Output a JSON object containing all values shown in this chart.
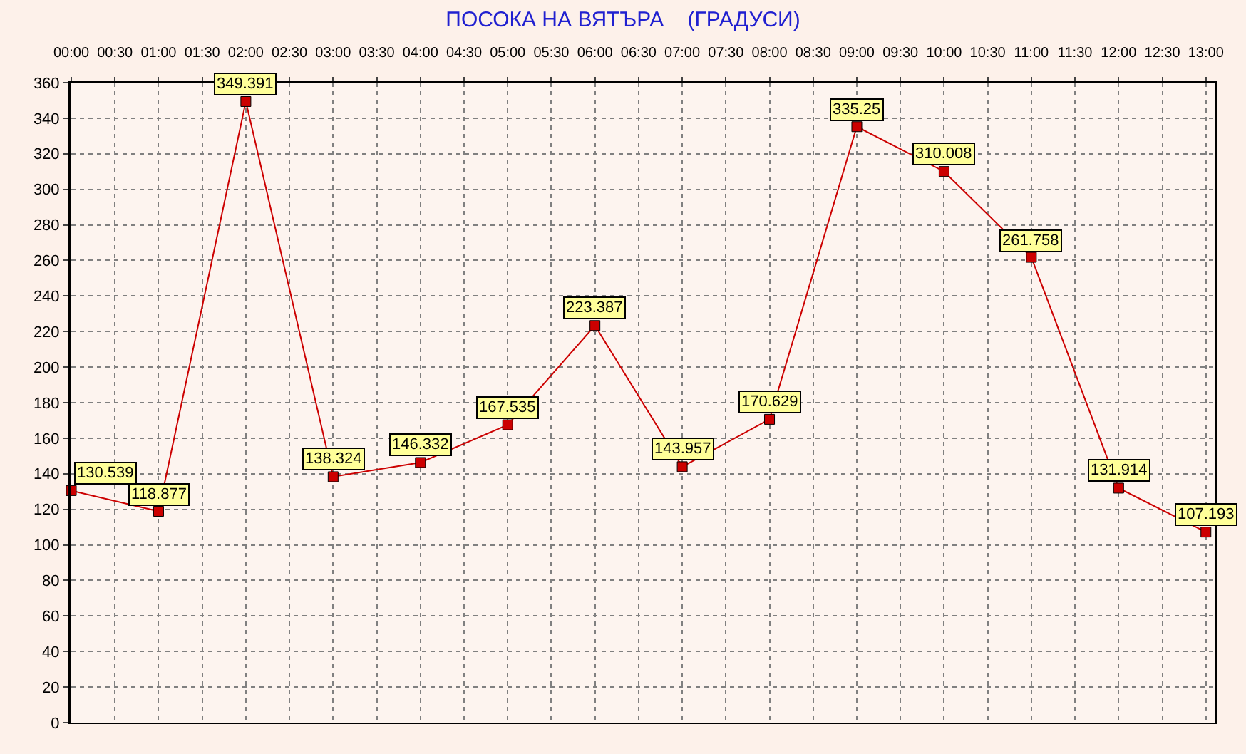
{
  "chart_data": {
    "type": "line",
    "title": "ПОСОКА НА ВЯТЪРА    (ГРАДУСИ)",
    "x": [
      0,
      1,
      2,
      3,
      4,
      5,
      6,
      7,
      8,
      9,
      10,
      11,
      12,
      13
    ],
    "series": [
      {
        "color": "#cc0000",
        "values": [
          130.539,
          118.877,
          349.391,
          138.324,
          146.332,
          167.535,
          223.387,
          143.957,
          170.629,
          335.25,
          310.008,
          261.758,
          131.914,
          107.193
        ]
      }
    ],
    "xlim": [
      0,
      13.1
    ],
    "xticks": [
      {
        "value": 0,
        "label": "00:00"
      },
      {
        "value": 0.5,
        "label": "00:30"
      },
      {
        "value": 1,
        "label": "01:00"
      },
      {
        "value": 1.5,
        "label": "01:30"
      },
      {
        "value": 2,
        "label": "02:00"
      },
      {
        "value": 2.5,
        "label": "02:30"
      },
      {
        "value": 3,
        "label": "03:00"
      },
      {
        "value": 3.5,
        "label": "03:30"
      },
      {
        "value": 4,
        "label": "04:00"
      },
      {
        "value": 4.5,
        "label": "04:30"
      },
      {
        "value": 5,
        "label": "05:00"
      },
      {
        "value": 5.5,
        "label": "05:30"
      },
      {
        "value": 6,
        "label": "06:00"
      },
      {
        "value": 6.5,
        "label": "06:30"
      },
      {
        "value": 7,
        "label": "07:00"
      },
      {
        "value": 7.5,
        "label": "07:30"
      },
      {
        "value": 8,
        "label": "08:00"
      },
      {
        "value": 8.5,
        "label": "08:30"
      },
      {
        "value": 9,
        "label": "09:00"
      },
      {
        "value": 9.5,
        "label": "09:30"
      },
      {
        "value": 10,
        "label": "10:00"
      },
      {
        "value": 10.5,
        "label": "10:30"
      },
      {
        "value": 11,
        "label": "11:00"
      },
      {
        "value": 11.5,
        "label": "11:30"
      },
      {
        "value": 12,
        "label": "12:00"
      },
      {
        "value": 12.5,
        "label": "12:30"
      },
      {
        "value": 13,
        "label": "13:00"
      }
    ],
    "ylim": [
      0,
      360
    ],
    "yticks": [
      0,
      20,
      40,
      60,
      80,
      100,
      120,
      140,
      160,
      180,
      200,
      220,
      240,
      260,
      280,
      300,
      320,
      340,
      360
    ],
    "grid": true,
    "marker": "square",
    "line_style": "solid",
    "data_labels": true
  }
}
